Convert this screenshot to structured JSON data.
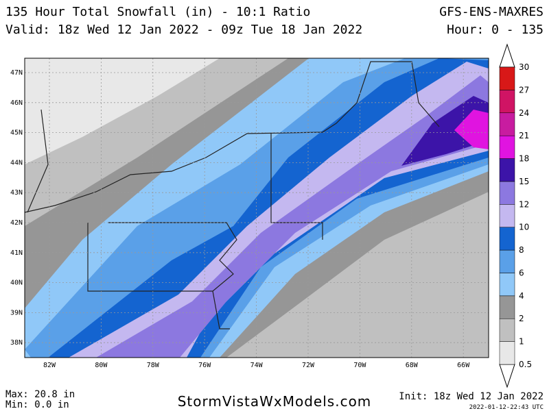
{
  "header": {
    "title": "135 Hour Total Snowfall (in) - 10:1 Ratio",
    "valid": "Valid: 18z Wed 12 Jan 2022 - 09z Tue 18 Jan 2022",
    "model": "GFS-ENS-MAXRES",
    "hours": "Hour: 0 - 135"
  },
  "map": {
    "lat_labels": [
      "47N",
      "46N",
      "45N",
      "44N",
      "43N",
      "42N",
      "41N",
      "40N",
      "39N",
      "38N"
    ],
    "lon_labels": [
      "82W",
      "80W",
      "78W",
      "76W",
      "74W",
      "72W",
      "70W",
      "68W",
      "66W"
    ]
  },
  "colorbar": {
    "labels": [
      "0.5",
      "1",
      "2",
      "4",
      "6",
      "8",
      "10",
      "12",
      "15",
      "18",
      "21",
      "24",
      "27",
      "30"
    ],
    "colors": [
      "#e8e8e8",
      "#c0c0c0",
      "#969696",
      "#90c8f8",
      "#5aa0e8",
      "#1464d0",
      "#c4b8f0",
      "#8c78e0",
      "#3c14a8",
      "#e014e0",
      "#c81ca0",
      "#d01464",
      "#d81818"
    ]
  },
  "footer": {
    "max": "Max: 20.8 in",
    "min": "Min: 0.0 in",
    "site": "StormVistaWxModels.com",
    "init": "Init: 18z Wed 12 Jan 2022",
    "stamp": "2022-01-12-22:43 UTC"
  }
}
